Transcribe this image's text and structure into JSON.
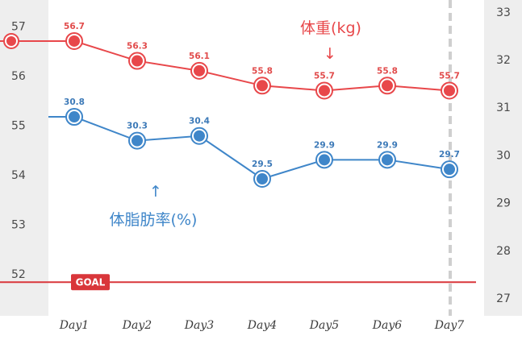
{
  "chart_data": {
    "type": "line",
    "categories": [
      "Day1",
      "Day2",
      "Day3",
      "Day4",
      "Day5",
      "Day6",
      "Day7"
    ],
    "series": [
      {
        "name": "体重(kg)",
        "axis": "left",
        "color": "#e8474a",
        "values": [
          56.7,
          56.3,
          56.1,
          55.8,
          55.7,
          55.8,
          55.7
        ],
        "labels": [
          "56.7",
          "56.3",
          "56.1",
          "55.8",
          "55.7",
          "55.8",
          "55.7"
        ]
      },
      {
        "name": "体脂肪率(%)",
        "axis": "right",
        "color": "#3f86c9",
        "values": [
          30.8,
          30.3,
          30.4,
          29.5,
          29.9,
          29.9,
          29.7
        ],
        "labels": [
          "30.8",
          "30.3",
          "30.4",
          "29.5",
          "29.9",
          "29.9",
          "29.7"
        ]
      }
    ],
    "y_left": {
      "ticks": [
        "52",
        "53",
        "54",
        "55",
        "56",
        "57"
      ],
      "range": [
        51.8,
        57.3
      ]
    },
    "y_right": {
      "ticks": [
        "27",
        "28",
        "29",
        "30",
        "31",
        "32",
        "33"
      ],
      "range": [
        26.8,
        33.2
      ]
    },
    "goal": {
      "label": "GOAL",
      "value": 51.8,
      "color": "#d9363a"
    },
    "grid": false,
    "legend": "inline annotations",
    "annotations": {
      "weight": "体重(kg)",
      "fat": "体脂肪率(%)",
      "weight_arrow": "↓",
      "fat_arrow": "↑"
    }
  }
}
